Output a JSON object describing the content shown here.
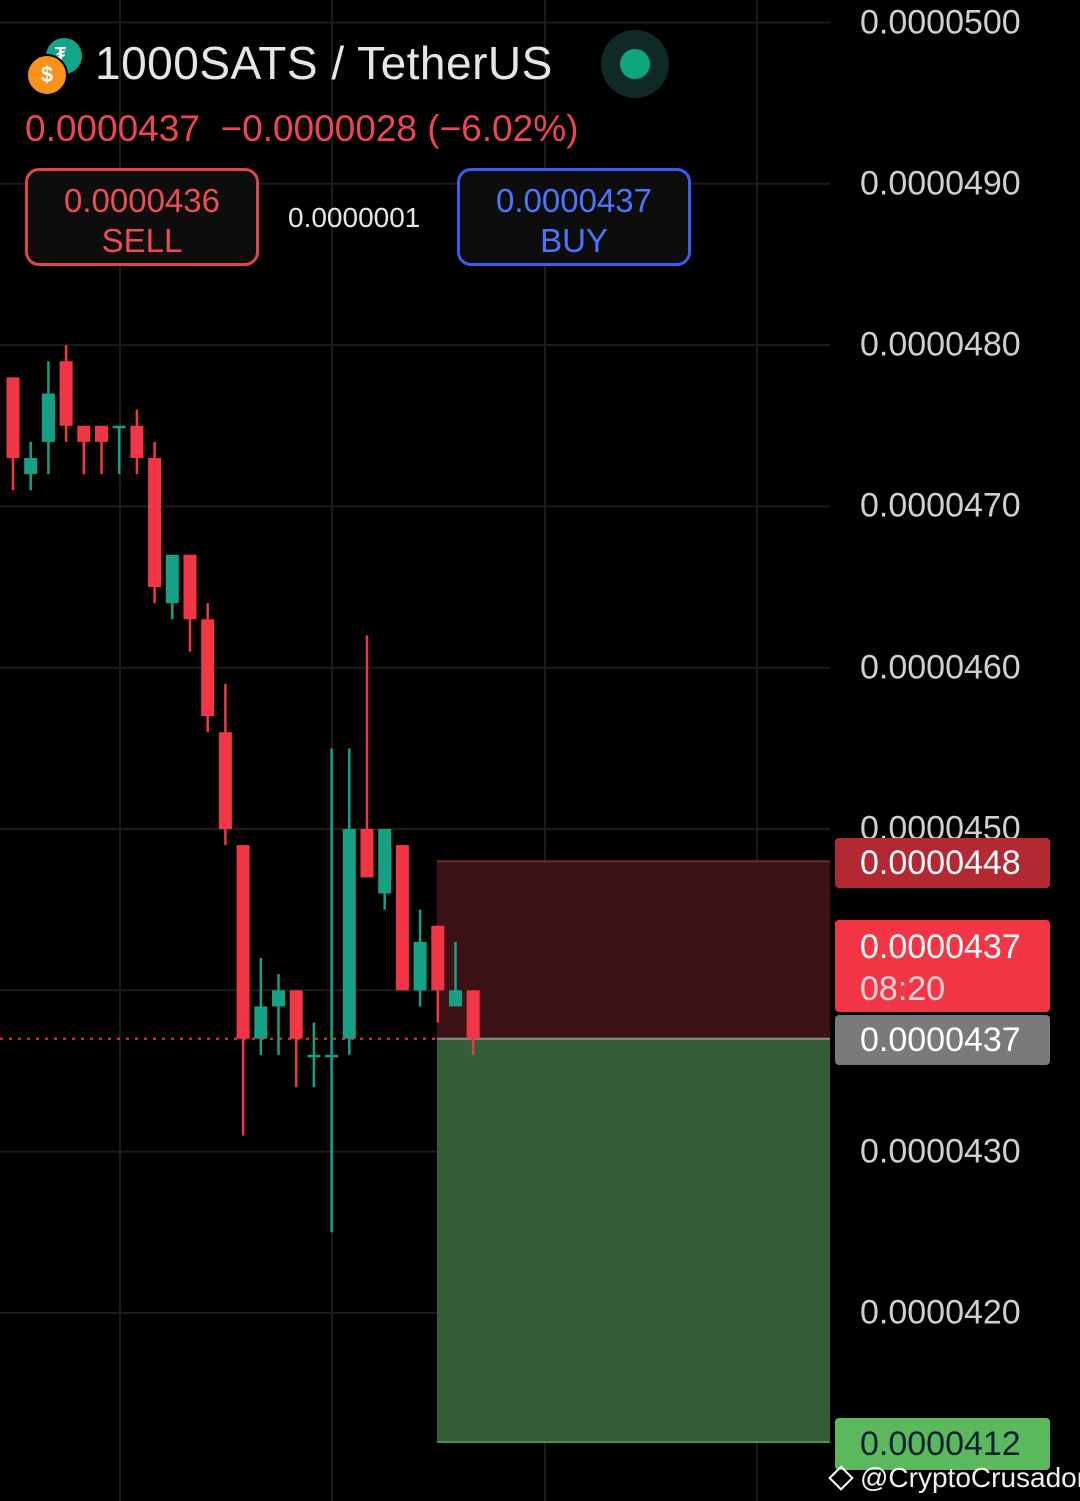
{
  "header": {
    "pair": "1000SATS / TetherUS",
    "quote_line": "0.0000437  −0.0000028 (−6.02%)",
    "sell": {
      "price": "0.0000436",
      "label": "SELL"
    },
    "spread": "0.0000001",
    "buy": {
      "price": "0.0000437",
      "label": "BUY"
    },
    "icons": [
      "tether-icon",
      "bitcoin-icon",
      "market-status-icon"
    ]
  },
  "price_tags": {
    "stop_loss": "0.0000448",
    "current_price": "0.0000437",
    "countdown": "08:20",
    "entry": "0.0000437",
    "take_profit": "0.0000412"
  },
  "watermark": "@CryptoCrusador",
  "colors": {
    "bull": "#16a085",
    "bear": "#f23645",
    "loss_zone": "#3d1216",
    "profit_zone": "#335e38",
    "sl_tag": "#b22833",
    "price_tag": "#f23645",
    "entry_tag": "#7a7a7a",
    "tp_tag": "#5cb85c"
  },
  "chart_data": {
    "type": "candlestick",
    "y_axis": {
      "ticks": [
        "0.0000500",
        "0.0000490",
        "0.0000480",
        "0.0000470",
        "0.0000460",
        "0.0000450",
        "0.0000430",
        "0.0000420"
      ],
      "tick_values": [
        5e-05,
        4.9e-05,
        4.8e-05,
        4.7e-05,
        4.6e-05,
        4.5e-05,
        4.3e-05,
        4.2e-05
      ],
      "range": [
        4.11e-05,
        5.01e-05
      ]
    },
    "grid": true,
    "candles": [
      {
        "o": 4.78e-05,
        "h": 4.78e-05,
        "l": 4.71e-05,
        "c": 4.73e-05
      },
      {
        "o": 4.72e-05,
        "h": 4.74e-05,
        "l": 4.71e-05,
        "c": 4.73e-05
      },
      {
        "o": 4.74e-05,
        "h": 4.79e-05,
        "l": 4.72e-05,
        "c": 4.77e-05
      },
      {
        "o": 4.79e-05,
        "h": 4.8e-05,
        "l": 4.74e-05,
        "c": 4.75e-05
      },
      {
        "o": 4.75e-05,
        "h": 4.75e-05,
        "l": 4.72e-05,
        "c": 4.74e-05
      },
      {
        "o": 4.75e-05,
        "h": 4.75e-05,
        "l": 4.72e-05,
        "c": 4.74e-05
      },
      {
        "o": 4.75e-05,
        "h": 4.75e-05,
        "l": 4.72e-05,
        "c": 4.75e-05
      },
      {
        "o": 4.75e-05,
        "h": 4.76e-05,
        "l": 4.72e-05,
        "c": 4.73e-05
      },
      {
        "o": 4.73e-05,
        "h": 4.74e-05,
        "l": 4.64e-05,
        "c": 4.65e-05
      },
      {
        "o": 4.64e-05,
        "h": 4.67e-05,
        "l": 4.63e-05,
        "c": 4.67e-05
      },
      {
        "o": 4.67e-05,
        "h": 4.67e-05,
        "l": 4.61e-05,
        "c": 4.63e-05
      },
      {
        "o": 4.63e-05,
        "h": 4.64e-05,
        "l": 4.56e-05,
        "c": 4.57e-05
      },
      {
        "o": 4.56e-05,
        "h": 4.59e-05,
        "l": 4.49e-05,
        "c": 4.5e-05
      },
      {
        "o": 4.49e-05,
        "h": 4.49e-05,
        "l": 4.31e-05,
        "c": 4.37e-05
      },
      {
        "o": 4.37e-05,
        "h": 4.42e-05,
        "l": 4.36e-05,
        "c": 4.39e-05
      },
      {
        "o": 4.39e-05,
        "h": 4.41e-05,
        "l": 4.36e-05,
        "c": 4.4e-05
      },
      {
        "o": 4.4e-05,
        "h": 4.4e-05,
        "l": 4.34e-05,
        "c": 4.37e-05
      },
      {
        "o": 4.36e-05,
        "h": 4.38e-05,
        "l": 4.34e-05,
        "c": 4.36e-05
      },
      {
        "o": 4.36e-05,
        "h": 4.55e-05,
        "l": 4.25e-05,
        "c": 4.36e-05
      },
      {
        "o": 4.37e-05,
        "h": 4.55e-05,
        "l": 4.36e-05,
        "c": 4.5e-05
      },
      {
        "o": 4.5e-05,
        "h": 4.62e-05,
        "l": 4.47e-05,
        "c": 4.47e-05
      },
      {
        "o": 4.46e-05,
        "h": 4.5e-05,
        "l": 4.45e-05,
        "c": 4.5e-05
      },
      {
        "o": 4.49e-05,
        "h": 4.49e-05,
        "l": 4.4e-05,
        "c": 4.4e-05
      },
      {
        "o": 4.4e-05,
        "h": 4.45e-05,
        "l": 4.39e-05,
        "c": 4.43e-05
      },
      {
        "o": 4.44e-05,
        "h": 4.44e-05,
        "l": 4.38e-05,
        "c": 4.4e-05
      },
      {
        "o": 4.39e-05,
        "h": 4.43e-05,
        "l": 4.39e-05,
        "c": 4.4e-05
      },
      {
        "o": 4.4e-05,
        "h": 4.4e-05,
        "l": 4.36e-05,
        "c": 4.37e-05
      }
    ],
    "position": {
      "entry": 4.37e-05,
      "stop_loss": 4.48e-05,
      "take_profit": 4.12e-05
    },
    "current_price": 4.37e-05
  }
}
